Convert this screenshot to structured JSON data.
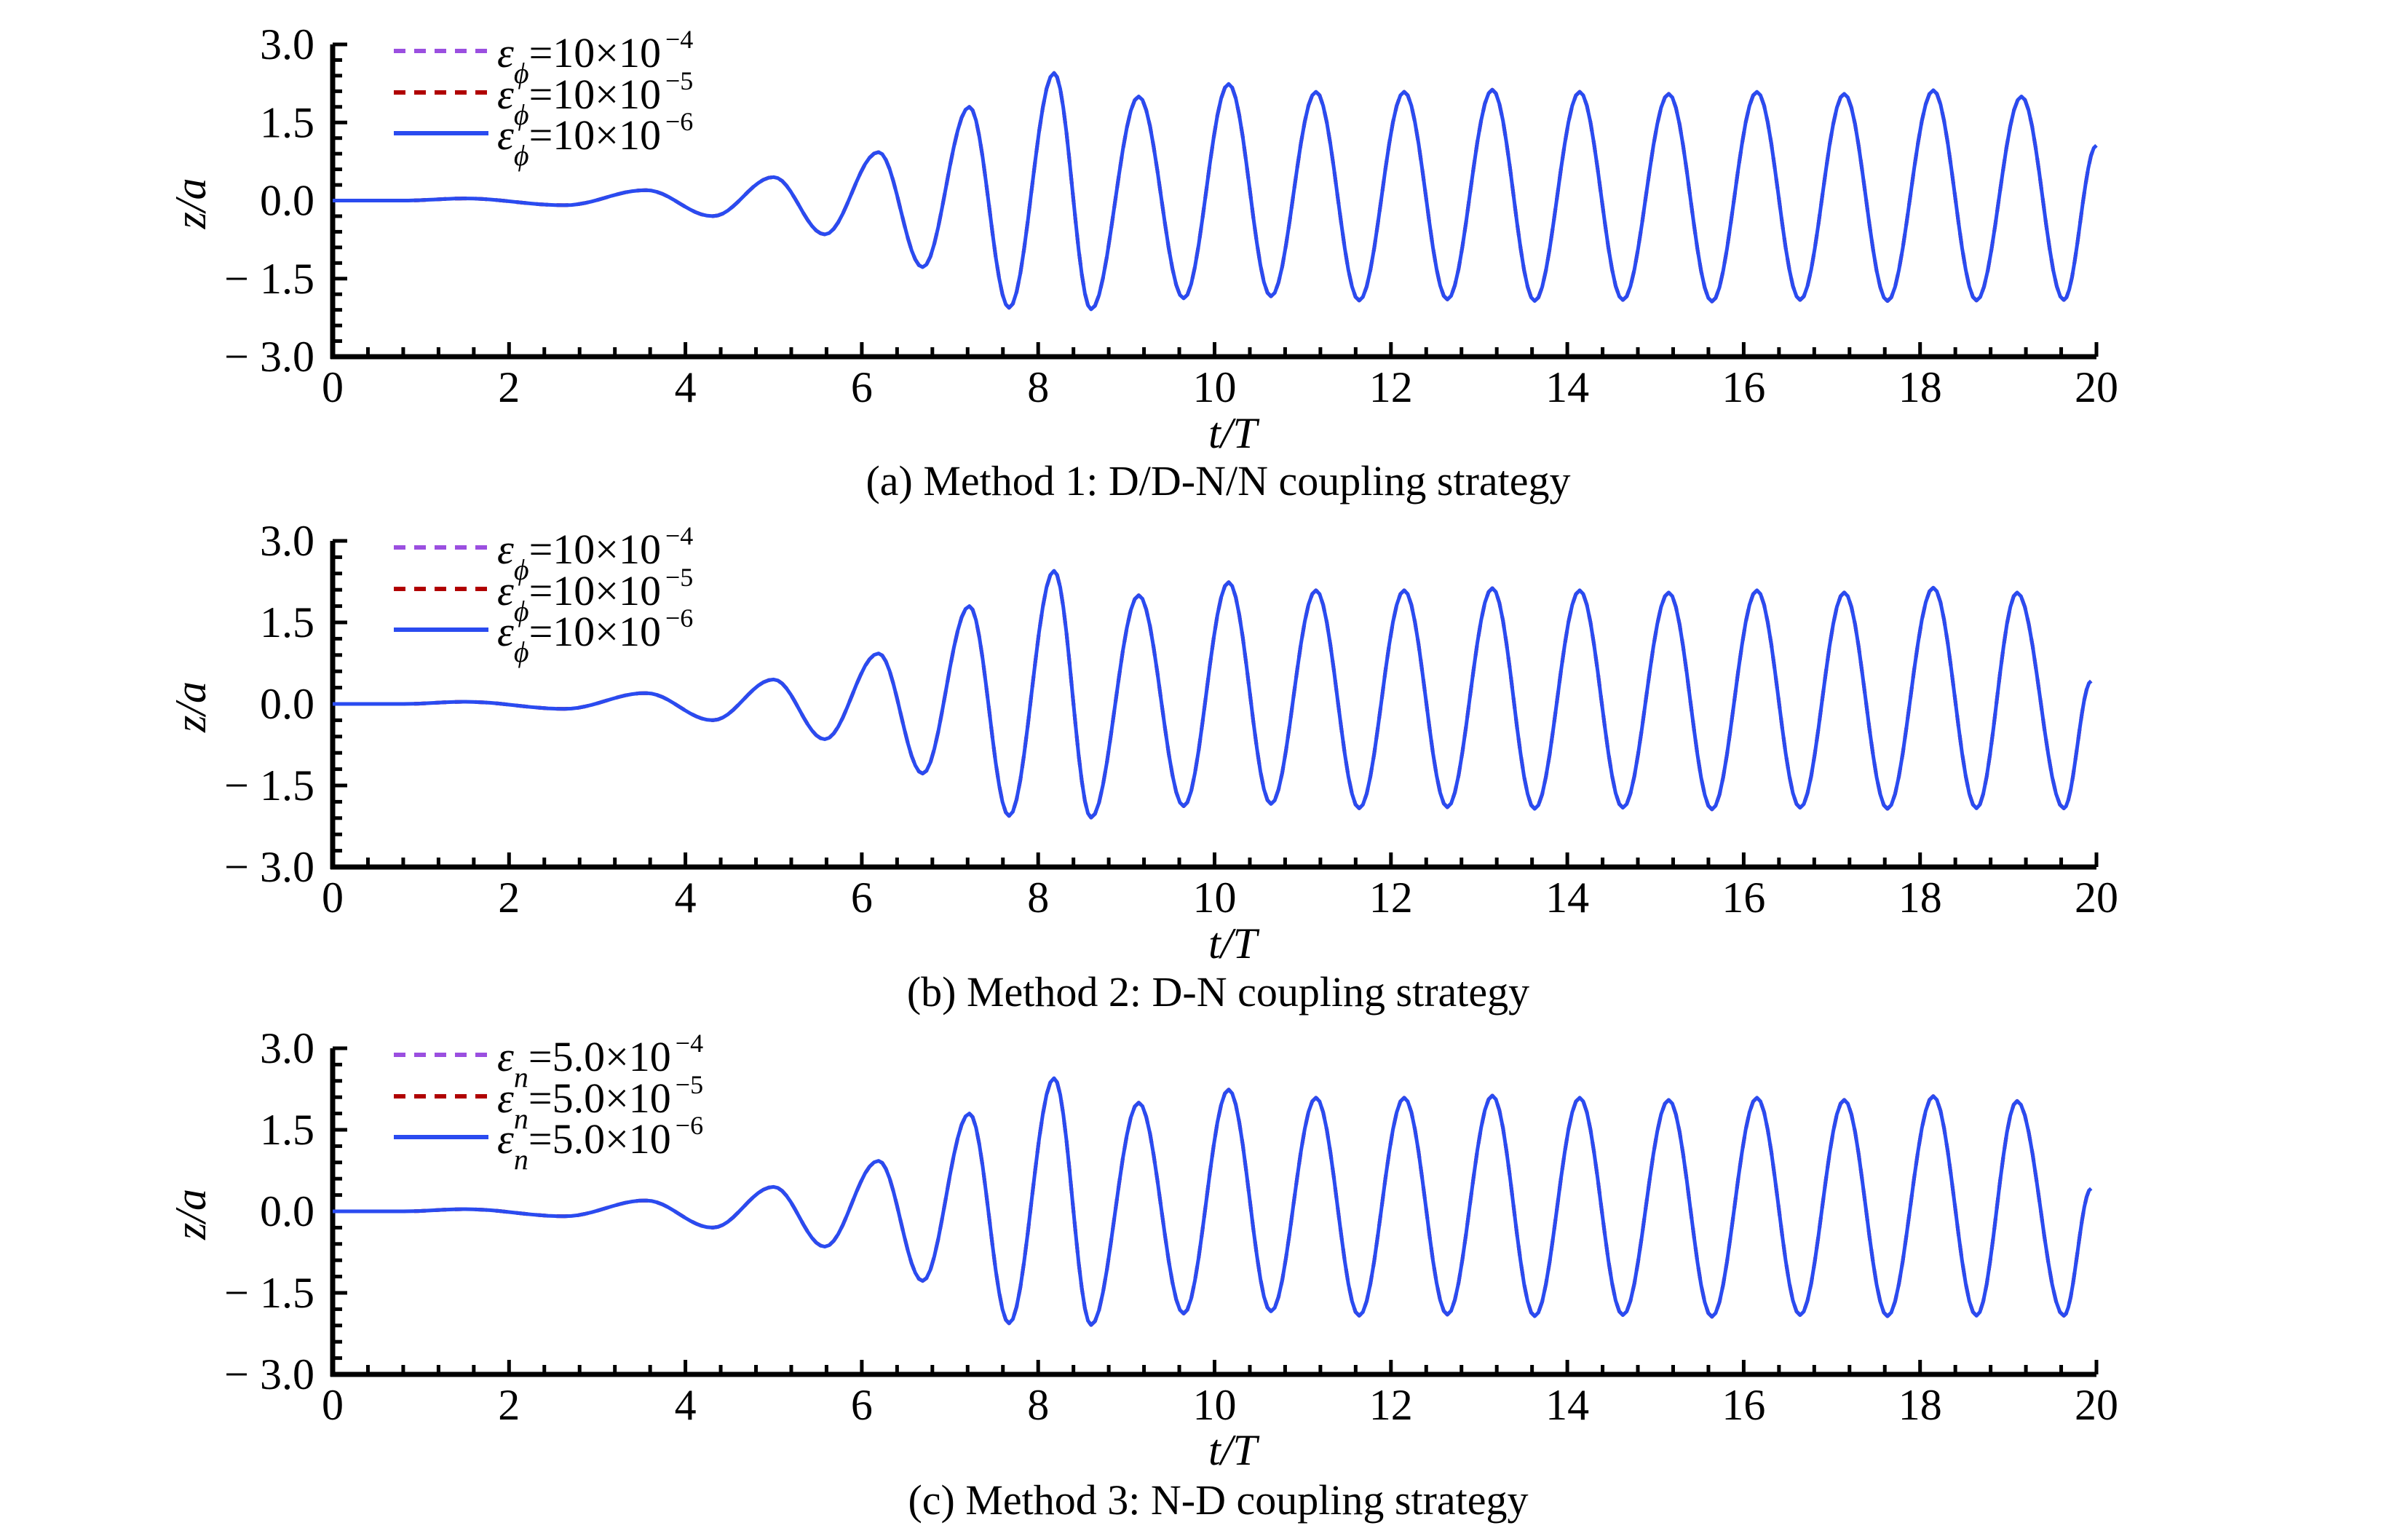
{
  "colors": {
    "series_1": "#9b4fe0",
    "series_2": "#b00000",
    "series_3": "#2a4bf0",
    "axis": "#000000"
  },
  "chart_data": [
    {
      "type": "line",
      "title": "",
      "caption": "(a) Method 1: D/D-N/N coupling strategy",
      "xlabel": "t/T",
      "ylabel": "z/a",
      "xlim": [
        0,
        20
      ],
      "ylim": [
        -3.0,
        3.0
      ],
      "xticks": [
        "0",
        "2",
        "4",
        "6",
        "8",
        "10",
        "12",
        "14",
        "16",
        "18",
        "20"
      ],
      "yticks": [
        "3.0",
        "1.5",
        "0.0",
        "− 1.5",
        "− 3.0"
      ],
      "grid": false,
      "legend_position": "top-left",
      "series": [
        {
          "name": "εϕ=10×10−4",
          "symbol": "ε",
          "subscript": "ϕ",
          "mantissa": "=10×10",
          "exponent": "−4",
          "style": "dashed",
          "color_key": "series_1"
        },
        {
          "name": "εϕ=10×10−5",
          "symbol": "ε",
          "subscript": "ϕ",
          "mantissa": "=10×10",
          "exponent": "−5",
          "style": "dashed",
          "color_key": "series_2"
        },
        {
          "name": "εϕ=10×10−6",
          "symbol": "ε",
          "subscript": "ϕ",
          "mantissa": "=10×10",
          "exponent": "−6",
          "style": "solid",
          "color_key": "series_3"
        }
      ],
      "curve": {
        "note_series": "all three series overlap",
        "x": [
          0,
          0.8,
          1.5,
          2.63,
          3.55,
          4.31,
          5.0,
          5.58,
          6.19,
          6.69,
          7.22,
          7.67,
          8.18,
          8.6,
          9.14,
          9.65,
          10.16,
          10.64,
          11.15,
          11.64,
          12.15,
          12.64,
          13.15,
          13.63,
          14.14,
          14.63,
          15.15,
          15.64,
          16.15,
          16.64,
          17.14,
          17.63,
          18.15,
          18.64,
          19.15,
          19.63,
          20.0
        ],
        "y": [
          0.0,
          0.0,
          0.04,
          -0.09,
          0.2,
          -0.3,
          0.45,
          -0.65,
          0.93,
          -1.28,
          1.8,
          -2.06,
          2.45,
          -2.09,
          2.0,
          -1.88,
          2.24,
          -1.84,
          2.09,
          -1.92,
          2.09,
          -1.9,
          2.13,
          -1.93,
          2.09,
          -1.91,
          2.05,
          -1.94,
          2.09,
          -1.91,
          2.05,
          -1.93,
          2.12,
          -1.92,
          2.0,
          -1.91,
          1.06
        ]
      }
    },
    {
      "type": "line",
      "title": "",
      "caption": "(b) Method 2: D-N coupling strategy",
      "xlabel": "t/T",
      "ylabel": "z/a",
      "xlim": [
        0,
        20
      ],
      "ylim": [
        -3.0,
        3.0
      ],
      "xticks": [
        "0",
        "2",
        "4",
        "6",
        "8",
        "10",
        "12",
        "14",
        "16",
        "18",
        "20"
      ],
      "yticks": [
        "3.0",
        "1.5",
        "0.0",
        "− 1.5",
        "− 3.0"
      ],
      "grid": false,
      "legend_position": "top-left",
      "series": [
        {
          "name": "εϕ=10×10−4",
          "symbol": "ε",
          "subscript": "ϕ",
          "mantissa": "=10×10",
          "exponent": "−4",
          "style": "dashed",
          "color_key": "series_1"
        },
        {
          "name": "εϕ=10×10−5",
          "symbol": "ε",
          "subscript": "ϕ",
          "mantissa": "=10×10",
          "exponent": "−5",
          "style": "dashed",
          "color_key": "series_2"
        },
        {
          "name": "εϕ=10×10−6",
          "symbol": "ε",
          "subscript": "ϕ",
          "mantissa": "=10×10",
          "exponent": "−6",
          "style": "solid",
          "color_key": "series_3"
        }
      ],
      "curve": {
        "note_series": "all three series overlap",
        "x": [
          0,
          0.8,
          1.5,
          2.63,
          3.55,
          4.31,
          5.0,
          5.58,
          6.19,
          6.69,
          7.22,
          7.67,
          8.18,
          8.6,
          9.14,
          9.65,
          10.16,
          10.64,
          11.15,
          11.64,
          12.15,
          12.64,
          13.15,
          13.63,
          14.14,
          14.63,
          15.15,
          15.64,
          16.15,
          16.64,
          17.14,
          17.63,
          18.15,
          18.64,
          19.1,
          19.63,
          19.94
        ],
        "y": [
          0.0,
          0.0,
          0.04,
          -0.09,
          0.2,
          -0.3,
          0.45,
          -0.65,
          0.93,
          -1.28,
          1.8,
          -2.06,
          2.45,
          -2.09,
          2.0,
          -1.88,
          2.24,
          -1.84,
          2.09,
          -1.92,
          2.09,
          -1.9,
          2.13,
          -1.93,
          2.09,
          -1.91,
          2.05,
          -1.94,
          2.09,
          -1.91,
          2.05,
          -1.93,
          2.14,
          -1.92,
          2.05,
          -1.92,
          0.42
        ]
      }
    },
    {
      "type": "line",
      "title": "",
      "caption": "(c) Method 3: N-D coupling strategy",
      "xlabel": "t/T",
      "ylabel": "z/a",
      "xlim": [
        0,
        20
      ],
      "ylim": [
        -3.0,
        3.0
      ],
      "xticks": [
        "0",
        "2",
        "4",
        "6",
        "8",
        "10",
        "12",
        "14",
        "16",
        "18",
        "20"
      ],
      "yticks": [
        "3.0",
        "1.5",
        "0.0",
        "− 1.5",
        "− 3.0"
      ],
      "grid": false,
      "legend_position": "top-left",
      "series": [
        {
          "name": "εn=5.0×10−4",
          "symbol": "ε",
          "subscript": "n",
          "mantissa": "=5.0×10",
          "exponent": "−4",
          "style": "dashed",
          "color_key": "series_1"
        },
        {
          "name": "εn=5.0×10−5",
          "symbol": "ε",
          "subscript": "n",
          "mantissa": "=5.0×10",
          "exponent": "−5",
          "style": "dashed",
          "color_key": "series_2"
        },
        {
          "name": "εn=5.0×10−6",
          "symbol": "ε",
          "subscript": "n",
          "mantissa": "=5.0×10",
          "exponent": "−6",
          "style": "solid",
          "color_key": "series_3"
        }
      ],
      "curve": {
        "note_series": "all three series overlap",
        "x": [
          0,
          0.8,
          1.5,
          2.63,
          3.55,
          4.31,
          5.0,
          5.58,
          6.19,
          6.69,
          7.22,
          7.67,
          8.18,
          8.6,
          9.14,
          9.65,
          10.16,
          10.64,
          11.15,
          11.64,
          12.15,
          12.64,
          13.15,
          13.63,
          14.14,
          14.63,
          15.15,
          15.64,
          16.15,
          16.64,
          17.14,
          17.63,
          18.15,
          18.64,
          19.1,
          19.63,
          19.94
        ],
        "y": [
          0.0,
          0.0,
          0.04,
          -0.09,
          0.2,
          -0.3,
          0.45,
          -0.65,
          0.93,
          -1.28,
          1.8,
          -2.06,
          2.45,
          -2.09,
          2.0,
          -1.88,
          2.24,
          -1.84,
          2.09,
          -1.92,
          2.09,
          -1.9,
          2.13,
          -1.93,
          2.09,
          -1.91,
          2.05,
          -1.94,
          2.09,
          -1.91,
          2.05,
          -1.93,
          2.12,
          -1.92,
          2.03,
          -1.92,
          0.42
        ]
      }
    }
  ]
}
